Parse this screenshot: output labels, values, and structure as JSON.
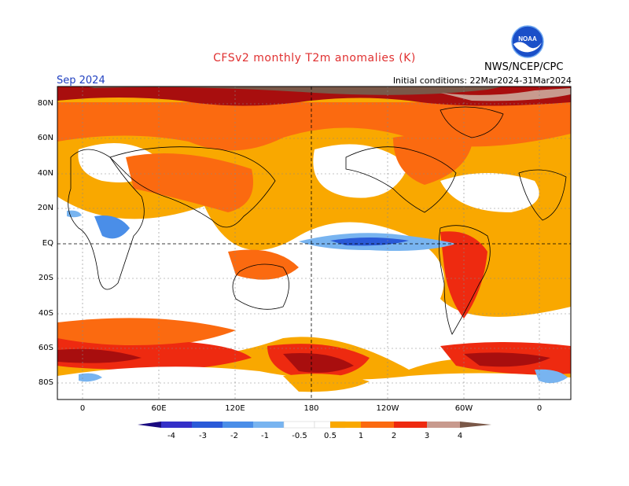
{
  "title": "CFSv2 monthly T2m anomalies (K)",
  "agency": "NWS/NCEP/CPC",
  "logo_text": "NOAA",
  "month": "Sep 2024",
  "initial_conditions": "Initial conditions: 22Mar2024-31Mar2024",
  "lat_labels": [
    "80N",
    "60N",
    "40N",
    "20N",
    "EQ",
    "20S",
    "40S",
    "60S",
    "80S"
  ],
  "lon_labels": [
    "0",
    "60E",
    "120E",
    "180",
    "120W",
    "60W",
    "0"
  ],
  "colorbar": {
    "labels": [
      "-4",
      "-3",
      "-2",
      "-1",
      "-0.5",
      "0.5",
      "1",
      "2",
      "3",
      "4"
    ],
    "colors": [
      "#1a0a80",
      "#3530c8",
      "#2a5ad8",
      "#4a8ee8",
      "#78b4f0",
      "#ffffff",
      "#f9a800",
      "#fb6a10",
      "#ee2a10",
      "#a80e0e",
      "#c89a8e",
      "#7a5848"
    ]
  }
}
